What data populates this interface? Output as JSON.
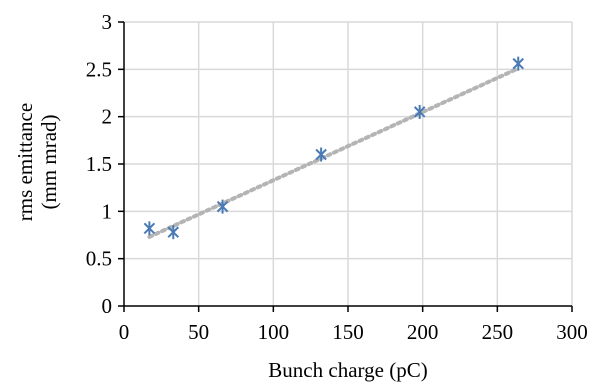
{
  "chart_data": {
    "type": "scatter",
    "title": "",
    "xlabel": "Bunch charge (pC)",
    "ylabel_lines": [
      "rms emittance",
      "(mm mrad)"
    ],
    "xlim": [
      0,
      300
    ],
    "ylim": [
      0,
      3
    ],
    "xticks": [
      0,
      50,
      100,
      150,
      200,
      250,
      300
    ],
    "yticks": [
      0,
      0.5,
      1,
      1.5,
      2,
      2.5,
      3
    ],
    "xtick_labels": [
      "0",
      "50",
      "100",
      "150",
      "200",
      "250",
      "300"
    ],
    "ytick_labels": [
      "0",
      "0.5",
      "1",
      "1.5",
      "2",
      "2.5",
      "3"
    ],
    "grid": true,
    "legend": "none",
    "marker": "asterisk",
    "series": [
      {
        "x": [
          17,
          33,
          66,
          132,
          198,
          264
        ],
        "y": [
          0.82,
          0.78,
          1.05,
          1.6,
          2.05,
          2.56
        ],
        "color": "#4a7ab5"
      }
    ],
    "trendline": {
      "style": "dotted",
      "color": "#b4b4b4",
      "x": [
        17,
        264
      ],
      "y": [
        0.73,
        2.51
      ]
    }
  }
}
